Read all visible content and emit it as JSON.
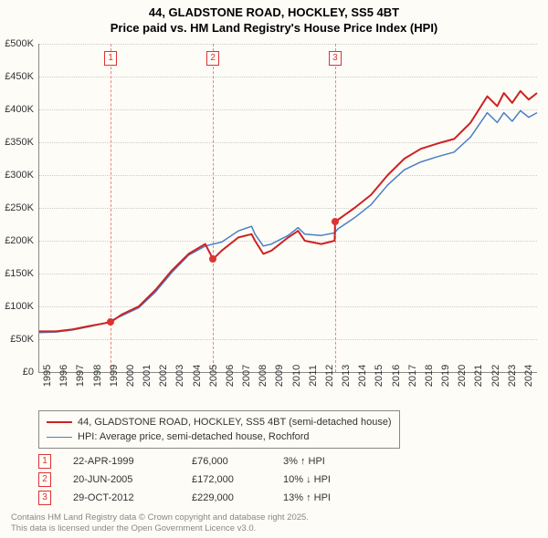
{
  "title_line1": "44, GLADSTONE ROAD, HOCKLEY, SS5 4BT",
  "title_line2": "Price paid vs. HM Land Registry's House Price Index (HPI)",
  "chart": {
    "type": "line",
    "background_color": "#fefcf7",
    "grid_color": "#cccccc",
    "axis_color": "#888888",
    "xlim": [
      1995,
      2025
    ],
    "ylim": [
      0,
      500000
    ],
    "ytick_step": 50000,
    "yticks": [
      "£0",
      "£50K",
      "£100K",
      "£150K",
      "£200K",
      "£250K",
      "£300K",
      "£350K",
      "£400K",
      "£450K",
      "£500K"
    ],
    "xticks": [
      1995,
      1996,
      1997,
      1998,
      1999,
      2000,
      2001,
      2002,
      2003,
      2004,
      2005,
      2006,
      2007,
      2008,
      2009,
      2010,
      2011,
      2012,
      2013,
      2014,
      2015,
      2016,
      2017,
      2018,
      2019,
      2020,
      2021,
      2022,
      2023,
      2024
    ],
    "series": [
      {
        "name": "44, GLADSTONE ROAD, HOCKLEY, SS5 4BT (semi-detached house)",
        "color": "#cc2222",
        "line_width": 2,
        "data": [
          [
            1995,
            62000
          ],
          [
            1996,
            62000
          ],
          [
            1997,
            65000
          ],
          [
            1998,
            70000
          ],
          [
            1999.3,
            76000
          ],
          [
            2000,
            88000
          ],
          [
            2001,
            100000
          ],
          [
            2002,
            125000
          ],
          [
            2003,
            155000
          ],
          [
            2004,
            180000
          ],
          [
            2005,
            195000
          ],
          [
            2005.47,
            172000
          ],
          [
            2006,
            185000
          ],
          [
            2007,
            205000
          ],
          [
            2007.8,
            210000
          ],
          [
            2008,
            200000
          ],
          [
            2008.5,
            180000
          ],
          [
            2009,
            185000
          ],
          [
            2010,
            205000
          ],
          [
            2010.6,
            215000
          ],
          [
            2011,
            200000
          ],
          [
            2012,
            195000
          ],
          [
            2012.8,
            200000
          ],
          [
            2012.83,
            229000
          ],
          [
            2013,
            232000
          ],
          [
            2014,
            250000
          ],
          [
            2015,
            270000
          ],
          [
            2016,
            300000
          ],
          [
            2017,
            325000
          ],
          [
            2018,
            340000
          ],
          [
            2019,
            348000
          ],
          [
            2020,
            355000
          ],
          [
            2021,
            380000
          ],
          [
            2022,
            420000
          ],
          [
            2022.6,
            405000
          ],
          [
            2023,
            425000
          ],
          [
            2023.5,
            410000
          ],
          [
            2024,
            428000
          ],
          [
            2024.5,
            415000
          ],
          [
            2025,
            425000
          ]
        ]
      },
      {
        "name": "HPI: Average price, semi-detached house, Rochford",
        "color": "#4a7fc4",
        "line_width": 1.5,
        "data": [
          [
            1995,
            60000
          ],
          [
            1996,
            61000
          ],
          [
            1997,
            64000
          ],
          [
            1998,
            69000
          ],
          [
            1999,
            75000
          ],
          [
            2000,
            86000
          ],
          [
            2001,
            98000
          ],
          [
            2002,
            122000
          ],
          [
            2003,
            152000
          ],
          [
            2004,
            178000
          ],
          [
            2005,
            192000
          ],
          [
            2006,
            198000
          ],
          [
            2007,
            215000
          ],
          [
            2007.8,
            222000
          ],
          [
            2008,
            210000
          ],
          [
            2008.5,
            192000
          ],
          [
            2009,
            195000
          ],
          [
            2010,
            208000
          ],
          [
            2010.6,
            220000
          ],
          [
            2011,
            210000
          ],
          [
            2012,
            208000
          ],
          [
            2012.8,
            212000
          ],
          [
            2013,
            218000
          ],
          [
            2014,
            235000
          ],
          [
            2015,
            255000
          ],
          [
            2016,
            285000
          ],
          [
            2017,
            308000
          ],
          [
            2018,
            320000
          ],
          [
            2019,
            328000
          ],
          [
            2020,
            335000
          ],
          [
            2021,
            358000
          ],
          [
            2022,
            395000
          ],
          [
            2022.6,
            380000
          ],
          [
            2023,
            395000
          ],
          [
            2023.5,
            382000
          ],
          [
            2024,
            398000
          ],
          [
            2024.5,
            388000
          ],
          [
            2025,
            395000
          ]
        ]
      }
    ],
    "sale_markers": [
      {
        "n": "1",
        "x": 1999.3,
        "y": 76000
      },
      {
        "n": "2",
        "x": 2005.47,
        "y": 172000
      },
      {
        "n": "3",
        "x": 2012.83,
        "y": 229000
      }
    ]
  },
  "legend": {
    "items": [
      {
        "color": "#cc2222",
        "width": 2,
        "label": "44, GLADSTONE ROAD, HOCKLEY, SS5 4BT (semi-detached house)"
      },
      {
        "color": "#4a7fc4",
        "width": 1.5,
        "label": "HPI: Average price, semi-detached house, Rochford"
      }
    ]
  },
  "sales": [
    {
      "n": "1",
      "date": "22-APR-1999",
      "price": "£76,000",
      "diff": "3% ↑ HPI"
    },
    {
      "n": "2",
      "date": "20-JUN-2005",
      "price": "£172,000",
      "diff": "10% ↓ HPI"
    },
    {
      "n": "3",
      "date": "29-OCT-2012",
      "price": "£229,000",
      "diff": "13% ↑ HPI"
    }
  ],
  "footer_line1": "Contains HM Land Registry data © Crown copyright and database right 2025.",
  "footer_line2": "This data is licensed under the Open Government Licence v3.0."
}
